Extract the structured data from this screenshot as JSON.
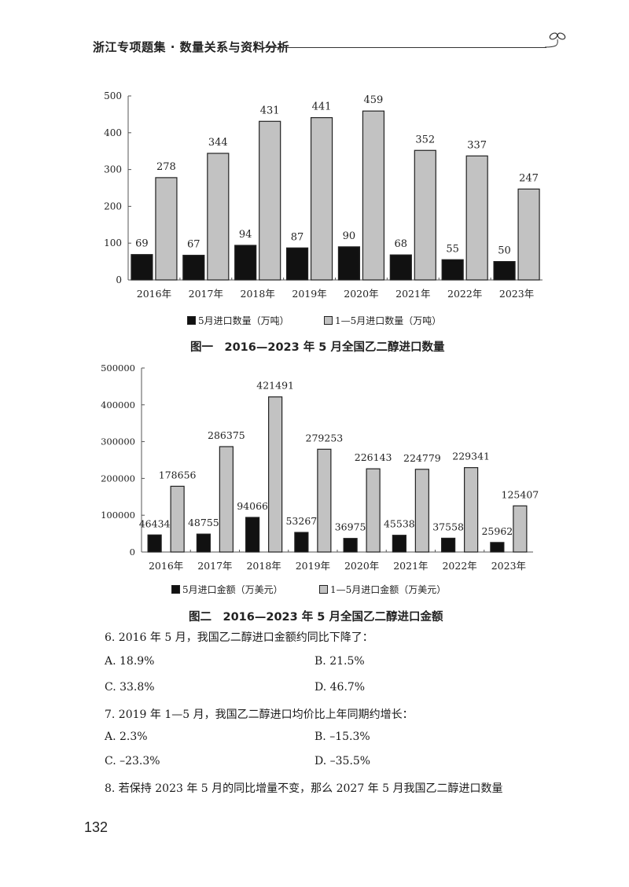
{
  "header": {
    "title": "浙江专项题集 · 数量关系与资料分析",
    "icon": "sprout-icon"
  },
  "chart_data": [
    {
      "type": "bar",
      "title": "图一　2016—2023 年 5 月全国乙二醇进口数量",
      "categories": [
        "2016年",
        "2017年",
        "2018年",
        "2019年",
        "2020年",
        "2021年",
        "2022年",
        "2023年"
      ],
      "series": [
        {
          "name": "5月进口数量（万吨）",
          "color": "#111111",
          "values": [
            69,
            67,
            94,
            87,
            90,
            68,
            55,
            50
          ]
        },
        {
          "name": "1—5月进口数量（万吨）",
          "color": "#c2c2c2",
          "values": [
            278,
            344,
            431,
            441,
            459,
            352,
            337,
            247
          ]
        }
      ],
      "yticks": [
        0,
        100,
        200,
        300,
        400,
        500
      ],
      "ylim": [
        0,
        500
      ],
      "xlabel": "",
      "ylabel": "",
      "grid": false,
      "legend_position": "bottom"
    },
    {
      "type": "bar",
      "title": "图二　2016—2023 年 5 月全国乙二醇进口金额",
      "categories": [
        "2016年",
        "2017年",
        "2018年",
        "2019年",
        "2020年",
        "2021年",
        "2022年",
        "2023年"
      ],
      "series": [
        {
          "name": "5月进口金额（万美元）",
          "color": "#111111",
          "values": [
            46434,
            48755,
            94066,
            53267,
            36975,
            45538,
            37558,
            25962
          ]
        },
        {
          "name": "1—5月进口金额（万美元）",
          "color": "#c2c2c2",
          "values": [
            178656,
            286375,
            421491,
            279253,
            226143,
            224779,
            229341,
            125407
          ]
        }
      ],
      "yticks": [
        0,
        100000,
        200000,
        300000,
        400000,
        500000
      ],
      "ylim": [
        0,
        500000
      ],
      "xlabel": "",
      "ylabel": "",
      "grid": false,
      "legend_position": "bottom"
    }
  ],
  "legends": {
    "chart1": {
      "a": "5月进口数量（万吨）",
      "b": "1—5月进口数量（万吨）"
    },
    "chart2": {
      "a": "5月进口金额（万美元）",
      "b": "1—5月进口金额（万美元）"
    }
  },
  "captions": {
    "chart1": "图一　2016—2023 年 5 月全国乙二醇进口数量",
    "chart2": "图二　2016—2023 年 5 月全国乙二醇进口金额"
  },
  "questions": [
    {
      "stem": "6. 2016 年 5 月，我国乙二醇进口金额约同比下降了：",
      "options": [
        "A. 18.9%",
        "B. 21.5%",
        "C. 33.8%",
        "D. 46.7%"
      ]
    },
    {
      "stem": "7. 2019 年 1—5 月，我国乙二醇进口均价比上年同期约增长：",
      "options": [
        "A. 2.3%",
        "B. –15.3%",
        "C. –23.3%",
        "D. –35.5%"
      ]
    },
    {
      "stem": "8. 若保持 2023 年 5 月的同比增量不变，那么 2027 年 5 月我国乙二醇进口数量",
      "options": []
    }
  ],
  "page_number": "132"
}
